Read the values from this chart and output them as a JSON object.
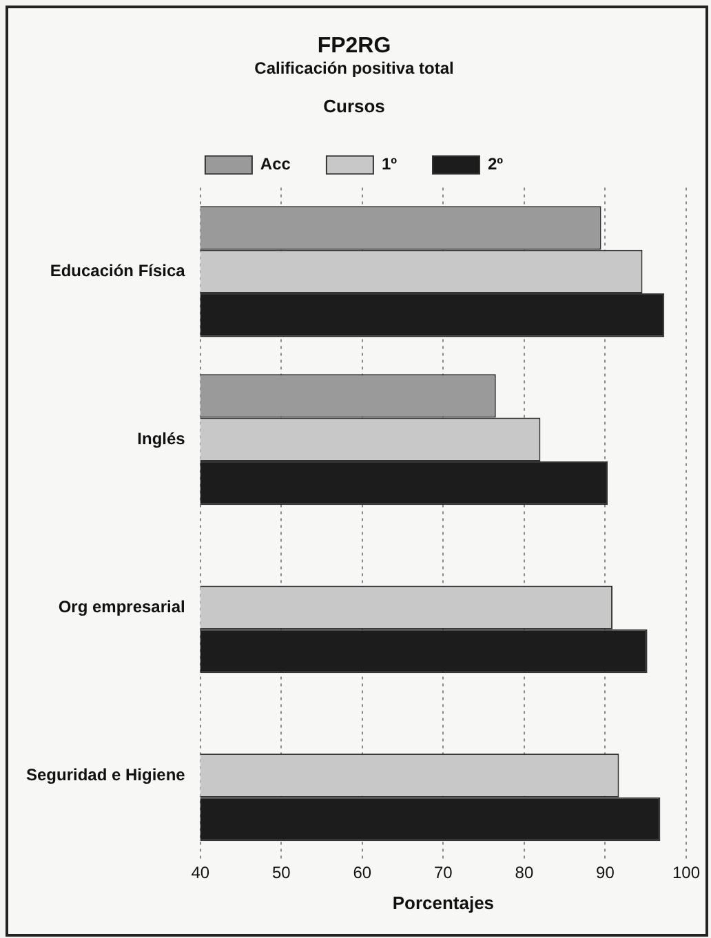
{
  "chart_data": {
    "type": "bar",
    "orientation": "horizontal",
    "title": "FP2RG",
    "subtitle": "Calificación positiva total",
    "xlabel": "Porcentajes",
    "legend_title": "Cursos",
    "legend": "top",
    "categories": [
      "Educación Física",
      "Inglés",
      "Org empresarial",
      "Seguridad e Higiene"
    ],
    "series": [
      {
        "name": "Acc",
        "color": "#9a9a9a",
        "values": [
          89.5,
          76.5,
          null,
          null
        ]
      },
      {
        "name": "1º",
        "color": "#c8c8c8",
        "values": [
          94.6,
          82,
          90.9,
          91.7
        ]
      },
      {
        "name": "2º",
        "color": "#1c1c1c",
        "values": [
          97.3,
          90.3,
          95.2,
          96.8
        ]
      }
    ],
    "xlim": [
      40,
      100
    ],
    "xticks": [
      40,
      50,
      60,
      70,
      80,
      90,
      100
    ],
    "grid": "x"
  }
}
